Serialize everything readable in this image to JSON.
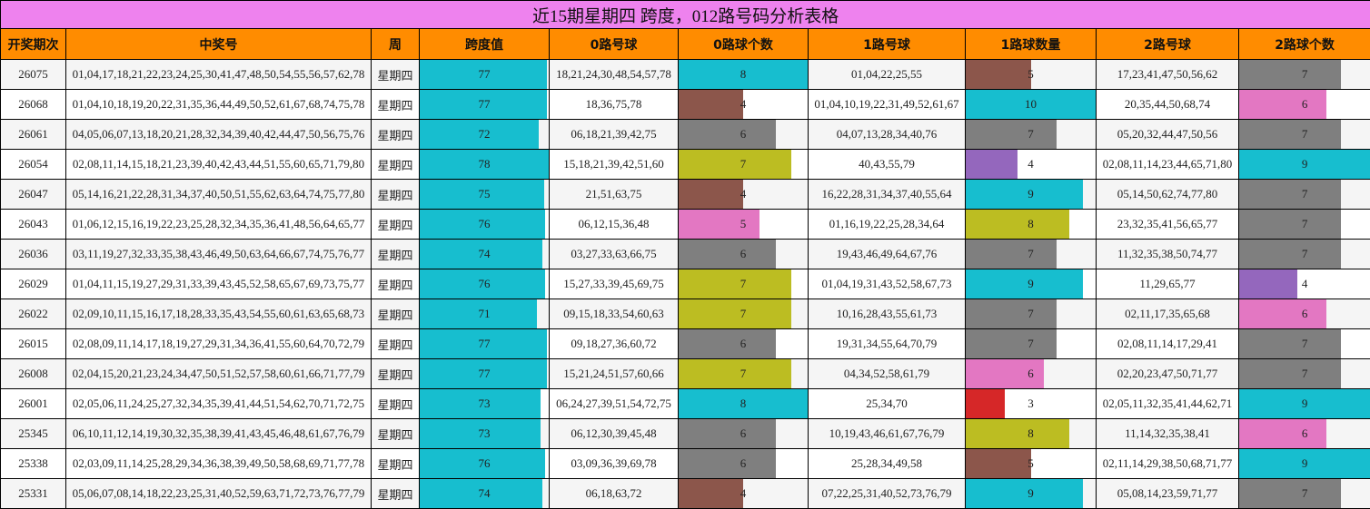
{
  "title": "近15期星期四 跨度，012路号码分析表格",
  "headers": [
    "开奖期次",
    "中奖号",
    "周",
    "跨度值",
    "0路号球",
    "0路球个数",
    "1路号球",
    "1路球数量",
    "2路号球",
    "2路球个数"
  ],
  "scales": {
    "span_max": 78,
    "c0_max": 8,
    "c1_max": 10,
    "c2_max": 9
  },
  "palette": {
    "title_bg": "#ee82ee",
    "header_bg": "#ff8c00",
    "span_bar": "#17becf",
    "count_colors": {
      "3": "#d62728",
      "4a": "#8c564b",
      "4b": "#9467bd",
      "5a": "#8c564b",
      "5b": "#e377c2",
      "6a": "#7f7f7f",
      "6b": "#e377c2",
      "7a": "#bcbd22",
      "7b": "#7f7f7f",
      "8a": "#17becf",
      "8b": "#bcbd22",
      "9": "#17becf",
      "10": "#17becf"
    }
  },
  "rows": [
    {
      "period": "26075",
      "numbers": "01,04,17,18,21,22,23,24,25,30,41,47,48,50,54,55,56,57,62,78",
      "week": "星期四",
      "span": "77",
      "r0": "18,21,24,30,48,54,57,78",
      "c0": "8",
      "c0_color": "#17becf",
      "r1": "01,04,22,25,55",
      "c1": "5",
      "c1_color": "#8c564b",
      "r2": "17,23,41,47,50,56,62",
      "c2": "7",
      "c2_color": "#7f7f7f"
    },
    {
      "period": "26068",
      "numbers": "01,04,10,18,19,20,22,31,35,36,44,49,50,52,61,67,68,74,75,78",
      "week": "星期四",
      "span": "77",
      "r0": "18,36,75,78",
      "c0": "4",
      "c0_color": "#8c564b",
      "r1": "01,04,10,19,22,31,49,52,61,67",
      "c1": "10",
      "c1_color": "#17becf",
      "r2": "20,35,44,50,68,74",
      "c2": "6",
      "c2_color": "#e377c2"
    },
    {
      "period": "26061",
      "numbers": "04,05,06,07,13,18,20,21,28,32,34,39,40,42,44,47,50,56,75,76",
      "week": "星期四",
      "span": "72",
      "r0": "06,18,21,39,42,75",
      "c0": "6",
      "c0_color": "#7f7f7f",
      "r1": "04,07,13,28,34,40,76",
      "c1": "7",
      "c1_color": "#7f7f7f",
      "r2": "05,20,32,44,47,50,56",
      "c2": "7",
      "c2_color": "#7f7f7f"
    },
    {
      "period": "26054",
      "numbers": "02,08,11,14,15,18,21,23,39,40,42,43,44,51,55,60,65,71,79,80",
      "week": "星期四",
      "span": "78",
      "r0": "15,18,21,39,42,51,60",
      "c0": "7",
      "c0_color": "#bcbd22",
      "r1": "40,43,55,79",
      "c1": "4",
      "c1_color": "#9467bd",
      "r2": "02,08,11,14,23,44,65,71,80",
      "c2": "9",
      "c2_color": "#17becf"
    },
    {
      "period": "26047",
      "numbers": "05,14,16,21,22,28,31,34,37,40,50,51,55,62,63,64,74,75,77,80",
      "week": "星期四",
      "span": "75",
      "r0": "21,51,63,75",
      "c0": "4",
      "c0_color": "#8c564b",
      "r1": "16,22,28,31,34,37,40,55,64",
      "c1": "9",
      "c1_color": "#17becf",
      "r2": "05,14,50,62,74,77,80",
      "c2": "7",
      "c2_color": "#7f7f7f"
    },
    {
      "period": "26043",
      "numbers": "01,06,12,15,16,19,22,23,25,28,32,34,35,36,41,48,56,64,65,77",
      "week": "星期四",
      "span": "76",
      "r0": "06,12,15,36,48",
      "c0": "5",
      "c0_color": "#e377c2",
      "r1": "01,16,19,22,25,28,34,64",
      "c1": "8",
      "c1_color": "#bcbd22",
      "r2": "23,32,35,41,56,65,77",
      "c2": "7",
      "c2_color": "#7f7f7f"
    },
    {
      "period": "26036",
      "numbers": "03,11,19,27,32,33,35,38,43,46,49,50,63,64,66,67,74,75,76,77",
      "week": "星期四",
      "span": "74",
      "r0": "03,27,33,63,66,75",
      "c0": "6",
      "c0_color": "#7f7f7f",
      "r1": "19,43,46,49,64,67,76",
      "c1": "7",
      "c1_color": "#7f7f7f",
      "r2": "11,32,35,38,50,74,77",
      "c2": "7",
      "c2_color": "#7f7f7f"
    },
    {
      "period": "26029",
      "numbers": "01,04,11,15,19,27,29,31,33,39,43,45,52,58,65,67,69,73,75,77",
      "week": "星期四",
      "span": "76",
      "r0": "15,27,33,39,45,69,75",
      "c0": "7",
      "c0_color": "#bcbd22",
      "r1": "01,04,19,31,43,52,58,67,73",
      "c1": "9",
      "c1_color": "#17becf",
      "r2": "11,29,65,77",
      "c2": "4",
      "c2_color": "#9467bd"
    },
    {
      "period": "26022",
      "numbers": "02,09,10,11,15,16,17,18,28,33,35,43,54,55,60,61,63,65,68,73",
      "week": "星期四",
      "span": "71",
      "r0": "09,15,18,33,54,60,63",
      "c0": "7",
      "c0_color": "#bcbd22",
      "r1": "10,16,28,43,55,61,73",
      "c1": "7",
      "c1_color": "#7f7f7f",
      "r2": "02,11,17,35,65,68",
      "c2": "6",
      "c2_color": "#e377c2"
    },
    {
      "period": "26015",
      "numbers": "02,08,09,11,14,17,18,19,27,29,31,34,36,41,55,60,64,70,72,79",
      "week": "星期四",
      "span": "77",
      "r0": "09,18,27,36,60,72",
      "c0": "6",
      "c0_color": "#7f7f7f",
      "r1": "19,31,34,55,64,70,79",
      "c1": "7",
      "c1_color": "#7f7f7f",
      "r2": "02,08,11,14,17,29,41",
      "c2": "7",
      "c2_color": "#7f7f7f"
    },
    {
      "period": "26008",
      "numbers": "02,04,15,20,21,23,24,34,47,50,51,52,57,58,60,61,66,71,77,79",
      "week": "星期四",
      "span": "77",
      "r0": "15,21,24,51,57,60,66",
      "c0": "7",
      "c0_color": "#bcbd22",
      "r1": "04,34,52,58,61,79",
      "c1": "6",
      "c1_color": "#e377c2",
      "r2": "02,20,23,47,50,71,77",
      "c2": "7",
      "c2_color": "#7f7f7f"
    },
    {
      "period": "26001",
      "numbers": "02,05,06,11,24,25,27,32,34,35,39,41,44,51,54,62,70,71,72,75",
      "week": "星期四",
      "span": "73",
      "r0": "06,24,27,39,51,54,72,75",
      "c0": "8",
      "c0_color": "#17becf",
      "r1": "25,34,70",
      "c1": "3",
      "c1_color": "#d62728",
      "r2": "02,05,11,32,35,41,44,62,71",
      "c2": "9",
      "c2_color": "#17becf"
    },
    {
      "period": "25345",
      "numbers": "06,10,11,12,14,19,30,32,35,38,39,41,43,45,46,48,61,67,76,79",
      "week": "星期四",
      "span": "73",
      "r0": "06,12,30,39,45,48",
      "c0": "6",
      "c0_color": "#7f7f7f",
      "r1": "10,19,43,46,61,67,76,79",
      "c1": "8",
      "c1_color": "#bcbd22",
      "r2": "11,14,32,35,38,41",
      "c2": "6",
      "c2_color": "#e377c2"
    },
    {
      "period": "25338",
      "numbers": "02,03,09,11,14,25,28,29,34,36,38,39,49,50,58,68,69,71,77,78",
      "week": "星期四",
      "span": "76",
      "r0": "03,09,36,39,69,78",
      "c0": "6",
      "c0_color": "#7f7f7f",
      "r1": "25,28,34,49,58",
      "c1": "5",
      "c1_color": "#8c564b",
      "r2": "02,11,14,29,38,50,68,71,77",
      "c2": "9",
      "c2_color": "#17becf"
    },
    {
      "period": "25331",
      "numbers": "05,06,07,08,14,18,22,23,25,31,40,52,59,63,71,72,73,76,77,79",
      "week": "星期四",
      "span": "74",
      "r0": "06,18,63,72",
      "c0": "4",
      "c0_color": "#8c564b",
      "r1": "07,22,25,31,40,52,73,76,79",
      "c1": "9",
      "c1_color": "#17becf",
      "r2": "05,08,14,23,59,71,77",
      "c2": "7",
      "c2_color": "#7f7f7f"
    }
  ]
}
